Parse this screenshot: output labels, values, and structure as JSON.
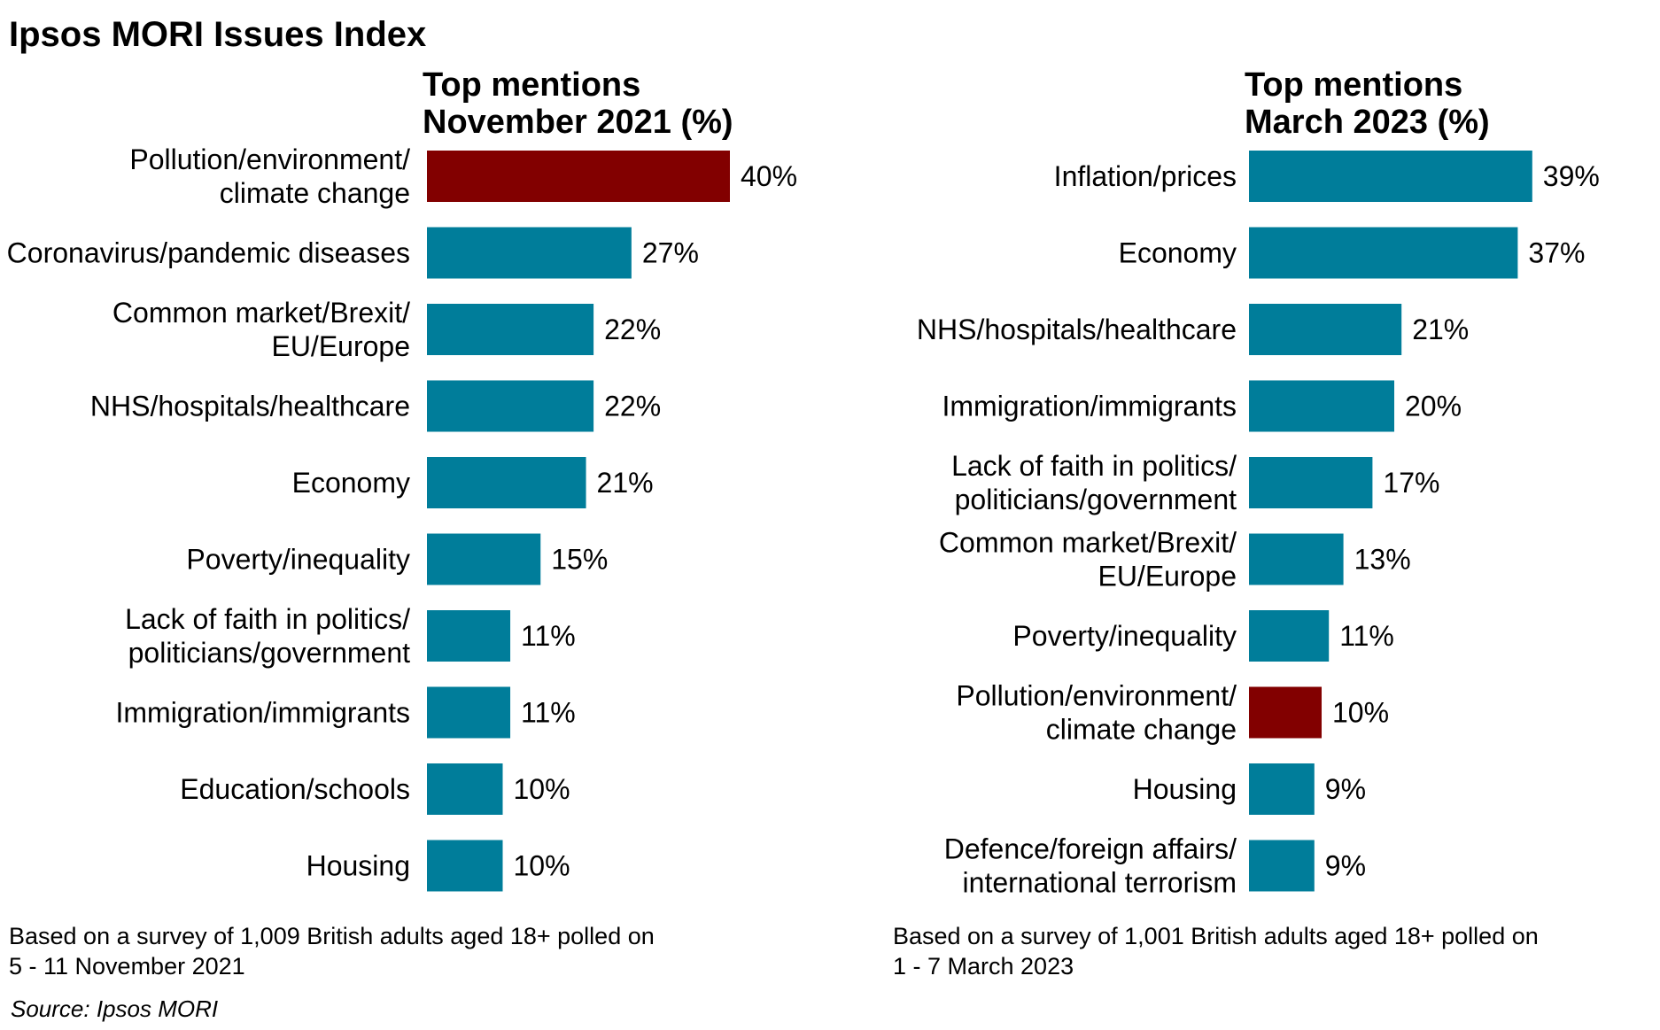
{
  "title": "Ipsos MORI Issues Index",
  "source": "Source: Ipsos MORI",
  "colors": {
    "default_bar": "#007d9a",
    "highlight_bar": "#820000",
    "text": "#000000"
  },
  "chart_data": [
    {
      "type": "bar",
      "orientation": "horizontal",
      "title": "Top mentions\nNovember 2021 (%)",
      "categories": [
        "Pollution/environment/\nclimate change",
        "Coronavirus/pandemic diseases",
        "Common market/Brexit/\nEU/Europe",
        "NHS/hospitals/healthcare",
        "Economy",
        "Poverty/inequality",
        "Lack of faith in politics/\npoliticians/government",
        "Immigration/immigrants",
        "Education/schools",
        "Housing"
      ],
      "values": [
        40,
        27,
        22,
        22,
        21,
        15,
        11,
        11,
        10,
        10
      ],
      "value_labels": [
        "40%",
        "27%",
        "22%",
        "22%",
        "21%",
        "15%",
        "11%",
        "11%",
        "10%",
        "10%"
      ],
      "highlight": [
        true,
        false,
        false,
        false,
        false,
        false,
        false,
        false,
        false,
        false
      ],
      "note": "Based on a survey of 1,009 British adults aged 18+ polled on\n5 - 11 November 2021"
    },
    {
      "type": "bar",
      "orientation": "horizontal",
      "title": "Top mentions\nMarch 2023 (%)",
      "categories": [
        "Inflation/prices",
        "Economy",
        "NHS/hospitals/healthcare",
        "Immigration/immigrants",
        "Lack of faith in politics/\npoliticians/government",
        "Common market/Brexit/\nEU/Europe",
        "Poverty/inequality",
        "Pollution/environment/\nclimate change",
        "Housing",
        "Defence/foreign affairs/\ninternational terrorism"
      ],
      "values": [
        39,
        37,
        21,
        20,
        17,
        13,
        11,
        10,
        9,
        9
      ],
      "value_labels": [
        "39%",
        "37%",
        "21%",
        "20%",
        "17%",
        "13%",
        "11%",
        "10%",
        "9%",
        "9%"
      ],
      "highlight": [
        false,
        false,
        false,
        false,
        false,
        false,
        false,
        true,
        false,
        false
      ],
      "note": "Based on a survey of 1,001 British adults aged 18+ polled on\n1 - 7 March 2023"
    }
  ]
}
